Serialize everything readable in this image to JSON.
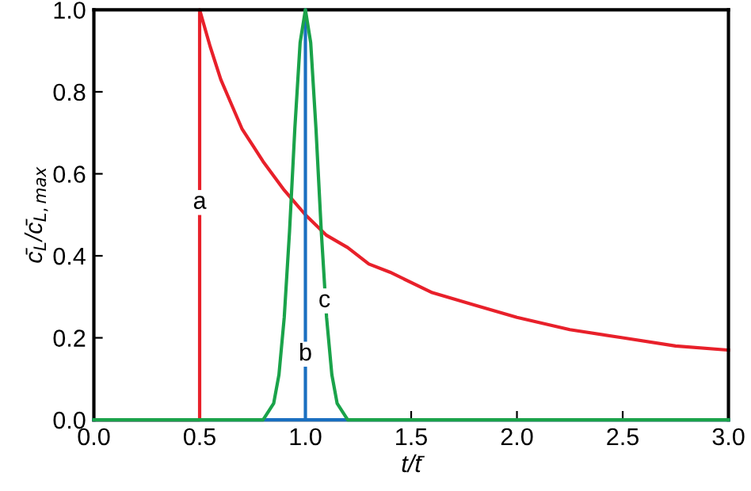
{
  "chart_data": {
    "type": "line",
    "xlabel": "t/t̄",
    "ylabel": "c̄$_{L}$/c̄$_{L,max}$",
    "xlim": [
      0,
      3
    ],
    "ylim": [
      0,
      1
    ],
    "xticks": [
      {
        "value": 0,
        "label": "0.0"
      },
      {
        "value": 0.5,
        "label": "0.5"
      },
      {
        "value": 1,
        "label": "1.0"
      },
      {
        "value": 1.5,
        "label": "1.5"
      },
      {
        "value": 2,
        "label": "2.0"
      },
      {
        "value": 2.5,
        "label": "2.5"
      },
      {
        "value": 3,
        "label": "3.0"
      }
    ],
    "yticks": [
      {
        "value": 0,
        "label": "0.0"
      },
      {
        "value": 0.2,
        "label": "0.2"
      },
      {
        "value": 0.4,
        "label": "0.4"
      },
      {
        "value": 0.6,
        "label": "0.6"
      },
      {
        "value": 0.8,
        "label": "0.8"
      },
      {
        "value": 1,
        "label": "1.0"
      }
    ],
    "grid": false,
    "marker": "none",
    "line_style": "solid",
    "annotations": [
      {
        "text": "a",
        "x": 0.5,
        "y": 0.53
      },
      {
        "text": "b",
        "x": 1.0,
        "y": 0.16
      },
      {
        "text": "c",
        "x": 1.09,
        "y": 0.29
      }
    ],
    "series": [
      {
        "color": "#e8202a",
        "x": [
          0,
          0.5,
          0.5,
          0.55,
          0.6,
          0.65,
          0.7,
          0.75,
          0.8,
          0.9,
          1.0,
          1.1,
          1.2,
          1.3,
          1.4,
          1.6,
          1.8,
          2.0,
          2.25,
          2.5,
          2.75,
          3.0
        ],
        "values": [
          0,
          0,
          1,
          0.91,
          0.83,
          0.77,
          0.71,
          0.67,
          0.63,
          0.56,
          0.5,
          0.45,
          0.42,
          0.38,
          0.36,
          0.31,
          0.28,
          0.25,
          0.22,
          0.2,
          0.18,
          0.17
        ]
      },
      {
        "color": "#1a6fc0",
        "x": [
          0,
          1,
          1,
          1,
          3
        ],
        "values": [
          0,
          0,
          1,
          0,
          0
        ]
      },
      {
        "color": "#1aa34a",
        "x": [
          0,
          0.8,
          0.85,
          0.875,
          0.9,
          0.925,
          0.95,
          0.975,
          1.0,
          1.025,
          1.05,
          1.075,
          1.1,
          1.125,
          1.15,
          1.2,
          3
        ],
        "values": [
          0,
          0,
          0.04,
          0.11,
          0.25,
          0.46,
          0.71,
          0.92,
          1,
          0.92,
          0.71,
          0.46,
          0.25,
          0.11,
          0.04,
          0,
          0
        ]
      }
    ]
  }
}
